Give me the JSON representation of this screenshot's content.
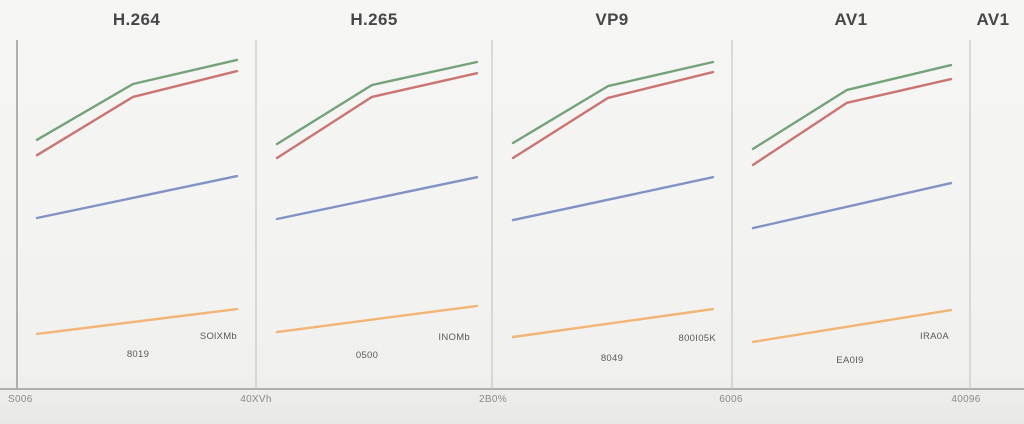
{
  "app": {
    "background": "#f3f3f1"
  },
  "chart_data": {
    "type": "line",
    "layout": "small_multiples_row",
    "title": "",
    "corner_title": "AV1",
    "grid": "off",
    "legend": "none",
    "x_tick_labels": [
      "S006",
      "40XVh",
      "2B0%",
      "6006",
      "40096"
    ],
    "points_format": "[x_fraction_of_panel_width, y_fraction_of_plot_height_from_bottom]",
    "colors": {
      "green_line": "#6e9e72",
      "red_line": "#c76e6a",
      "blue_line": "#7b8cc2",
      "orange_line": "#f1b16e",
      "axis": "#9a9a9a",
      "divider": "#c6c6c6",
      "title_text": "#474747",
      "tick_text": "#8a8a8a",
      "annotation_text": "#5a5a5a"
    },
    "panels": [
      {
        "title": "H.264",
        "annotations": {
          "line_label": "SOlXMb",
          "bottom_label": "8019"
        },
        "series": [
          {
            "name": "green-line",
            "color": "#6e9e72",
            "points": [
              [
                0,
                0.714
              ],
              [
                0.48,
                0.874
              ],
              [
                1,
                0.943
              ]
            ]
          },
          {
            "name": "red-line",
            "color": "#c76e6a",
            "points": [
              [
                0,
                0.67
              ],
              [
                0.48,
                0.837
              ],
              [
                1,
                0.911
              ]
            ]
          },
          {
            "name": "blue-line",
            "color": "#7b8cc2",
            "points": [
              [
                0,
                0.49
              ],
              [
                1,
                0.61
              ]
            ]
          },
          {
            "name": "orange-line",
            "color": "#f1b16e",
            "points": [
              [
                0,
                0.158
              ],
              [
                1,
                0.229
              ]
            ]
          }
        ]
      },
      {
        "title": "H.265",
        "annotations": {
          "line_label": "INOMb",
          "bottom_label": "0500"
        },
        "series": [
          {
            "name": "green-line",
            "color": "#6e9e72",
            "points": [
              [
                0,
                0.702
              ],
              [
                0.475,
                0.871
              ],
              [
                1,
                0.937
              ]
            ]
          },
          {
            "name": "red-line",
            "color": "#c76e6a",
            "points": [
              [
                0,
                0.662
              ],
              [
                0.475,
                0.837
              ],
              [
                1,
                0.905
              ]
            ]
          },
          {
            "name": "blue-line",
            "color": "#7b8cc2",
            "points": [
              [
                0,
                0.487
              ],
              [
                1,
                0.607
              ]
            ]
          },
          {
            "name": "orange-line",
            "color": "#f1b16e",
            "points": [
              [
                0,
                0.163
              ],
              [
                1,
                0.238
              ]
            ]
          }
        ]
      },
      {
        "title": "VP9",
        "annotations": {
          "line_label": "800I05K",
          "bottom_label": "8049"
        },
        "series": [
          {
            "name": "green-line",
            "color": "#6e9e72",
            "points": [
              [
                0,
                0.705
              ],
              [
                0.475,
                0.868
              ],
              [
                1,
                0.937
              ]
            ]
          },
          {
            "name": "red-line",
            "color": "#c76e6a",
            "points": [
              [
                0,
                0.662
              ],
              [
                0.475,
                0.834
              ],
              [
                1,
                0.908
              ]
            ]
          },
          {
            "name": "blue-line",
            "color": "#7b8cc2",
            "points": [
              [
                0,
                0.484
              ],
              [
                1,
                0.607
              ]
            ]
          },
          {
            "name": "orange-line",
            "color": "#f1b16e",
            "points": [
              [
                0,
                0.149
              ],
              [
                1,
                0.229
              ]
            ]
          }
        ]
      },
      {
        "title": "AV1",
        "annotations": {
          "line_label": "IRA0A",
          "bottom_label": "EA0I9"
        },
        "series": [
          {
            "name": "green-line",
            "color": "#6e9e72",
            "points": [
              [
                0,
                0.688
              ],
              [
                0.475,
                0.857
              ],
              [
                1,
                0.928
              ]
            ]
          },
          {
            "name": "red-line",
            "color": "#c76e6a",
            "points": [
              [
                0,
                0.642
              ],
              [
                0.475,
                0.82
              ],
              [
                1,
                0.888
              ]
            ]
          },
          {
            "name": "blue-line",
            "color": "#7b8cc2",
            "points": [
              [
                0,
                0.461
              ],
              [
                1,
                0.59
              ]
            ]
          },
          {
            "name": "orange-line",
            "color": "#f1b16e",
            "points": [
              [
                0,
                0.135
              ],
              [
                1,
                0.226
              ]
            ]
          }
        ]
      }
    ]
  }
}
